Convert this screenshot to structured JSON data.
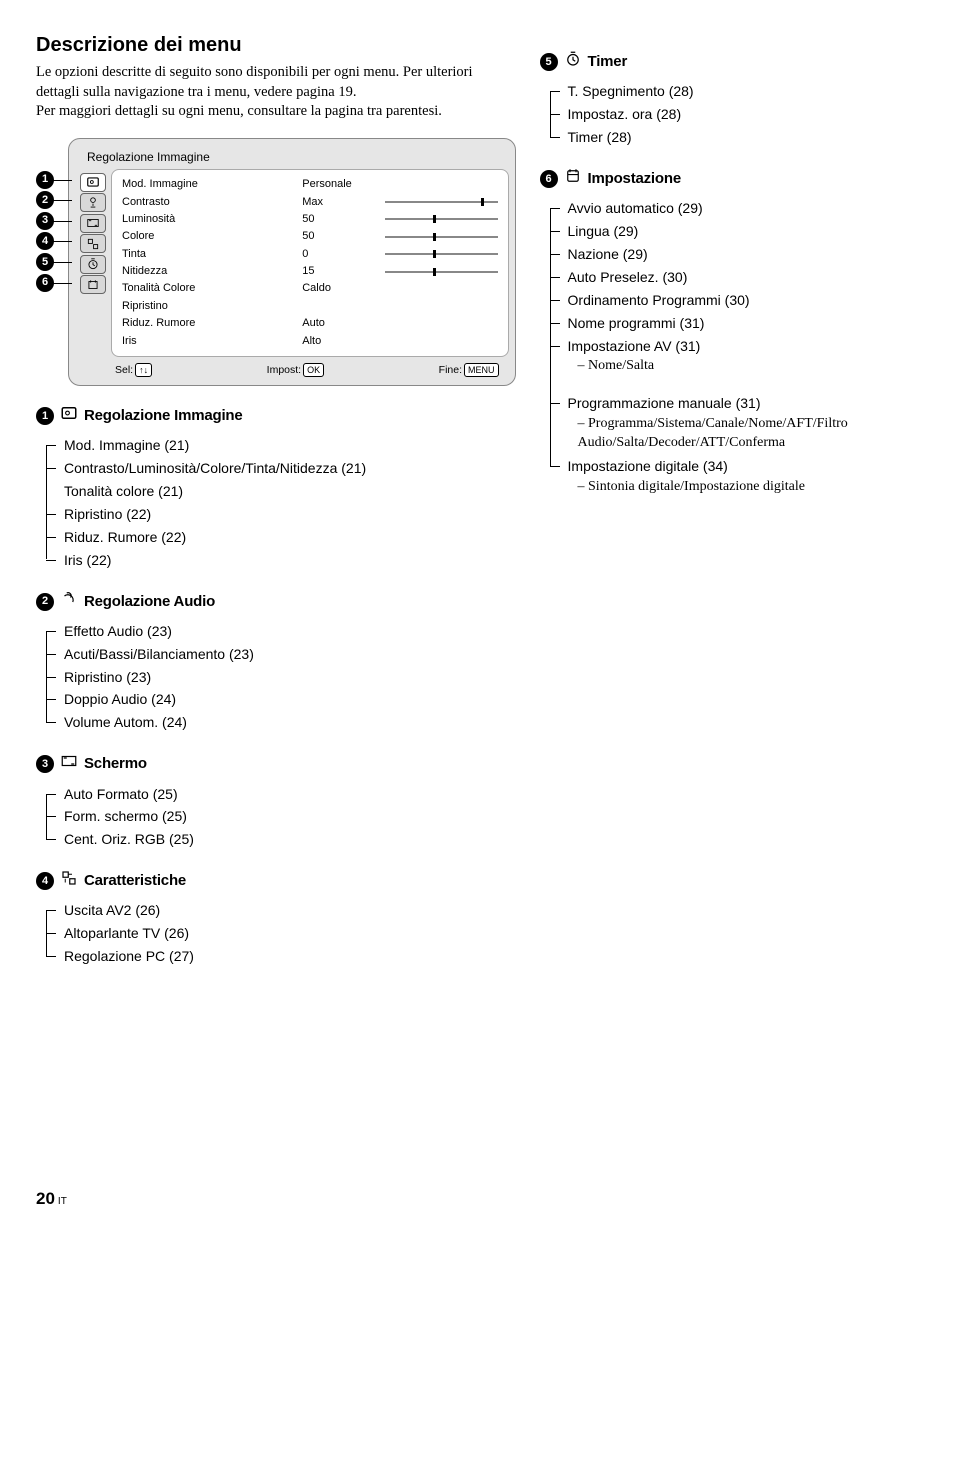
{
  "header": {
    "title": "Descrizione dei menu",
    "intro": "Le opzioni descritte di seguito sono disponibili per ogni menu. Per ulteriori dettagli sulla navigazione tra i menu, vedere pagina  19.\nPer maggiori dettagli su ogni menu, consultare la pagina tra parentesi."
  },
  "panel": {
    "title": "Regolazione Immagine",
    "rows": [
      {
        "label": "Mod. Immagine",
        "value": "Personale",
        "slider": null
      },
      {
        "label": "Contrasto",
        "value": "Max",
        "slider": 100
      },
      {
        "label": "Luminosità",
        "value": "50",
        "slider": 50
      },
      {
        "label": "Colore",
        "value": "50",
        "slider": 50
      },
      {
        "label": "Tinta",
        "value": "0",
        "slider": 50
      },
      {
        "label": "Nitidezza",
        "value": "15",
        "slider": 50
      },
      {
        "label": "Tonalità Colore",
        "value": "Caldo",
        "slider": null
      },
      {
        "label": "Ripristino",
        "value": "",
        "slider": null
      },
      {
        "label": "Riduz. Rumore",
        "value": "Auto",
        "slider": null
      },
      {
        "label": "Iris",
        "value": "Alto",
        "slider": null
      }
    ],
    "footer": {
      "sel_label": "Sel:",
      "sel_key": "↑↓",
      "impost_label": "Impost:",
      "impost_key": "OK",
      "fine_label": "Fine:",
      "fine_key": "MENU"
    },
    "badge_numbers": [
      "1",
      "2",
      "3",
      "4",
      "5",
      "6"
    ]
  },
  "sections_left": [
    {
      "num": "1",
      "title": "Regolazione Immagine",
      "items": [
        {
          "text": "Mod. Immagine (21)"
        },
        {
          "text": "Contrasto/Luminosità/Colore/Tinta/Nitidezza (21)"
        },
        {
          "text": "Tonalità colore (21)",
          "nobar": true,
          "indent": true
        },
        {
          "text": "Ripristino (22)"
        },
        {
          "text": "Riduz. Rumore (22)"
        },
        {
          "text": "Iris (22)"
        }
      ]
    }
  ],
  "sections_right": [
    {
      "num": "5",
      "title": "Timer",
      "items": [
        {
          "text": "T. Spegnimento (28)"
        },
        {
          "text": "Impostaz. ora (28)"
        },
        {
          "text": "Timer (28)"
        }
      ]
    },
    {
      "num": "6",
      "title": "Impostazione",
      "items": [
        {
          "text": "Avvio automatico (29)"
        },
        {
          "text": "Lingua (29)"
        },
        {
          "text": "Nazione (29)"
        },
        {
          "text": "Auto Preselez. (30)"
        },
        {
          "text": "Ordinamento Programmi (30)"
        },
        {
          "text": "Nome programmi (31)"
        },
        {
          "text": "Impostazione AV (31)",
          "subs": [
            "Nome/Salta"
          ],
          "gap_after": true
        },
        {
          "text": "Programmazione manuale (31)",
          "subs": [
            "Programma/Sistema/Canale/Nome/AFT/Filtro Audio/Salta/Decoder/ATT/Conferma"
          ]
        },
        {
          "text": "Impostazione digitale (34)",
          "subs": [
            "Sintonia digitale/Impostazione digitale"
          ]
        }
      ]
    }
  ],
  "sections_bottom": [
    {
      "num": "2",
      "title": "Regolazione Audio",
      "items": [
        {
          "text": "Effetto Audio (23)"
        },
        {
          "text": "Acuti/Bassi/Bilanciamento (23)",
          "indent": true
        },
        {
          "text": "Ripristino (23)"
        },
        {
          "text": "Doppio Audio (24)"
        },
        {
          "text": "Volume Autom. (24)"
        }
      ]
    },
    {
      "num": "3",
      "title": "Schermo",
      "items": [
        {
          "text": "Auto Formato (25)"
        },
        {
          "text": "Form. schermo (25)",
          "indent": true
        },
        {
          "text": "Cent. Oriz. RGB (25)"
        }
      ]
    },
    {
      "num": "4",
      "title": "Caratteristiche",
      "items": [
        {
          "text": "Uscita AV2 (26)"
        },
        {
          "text": "Altoparlante TV (26)"
        },
        {
          "text": "Regolazione PC (27)"
        }
      ]
    }
  ],
  "page_number": "20",
  "page_locale": "IT"
}
